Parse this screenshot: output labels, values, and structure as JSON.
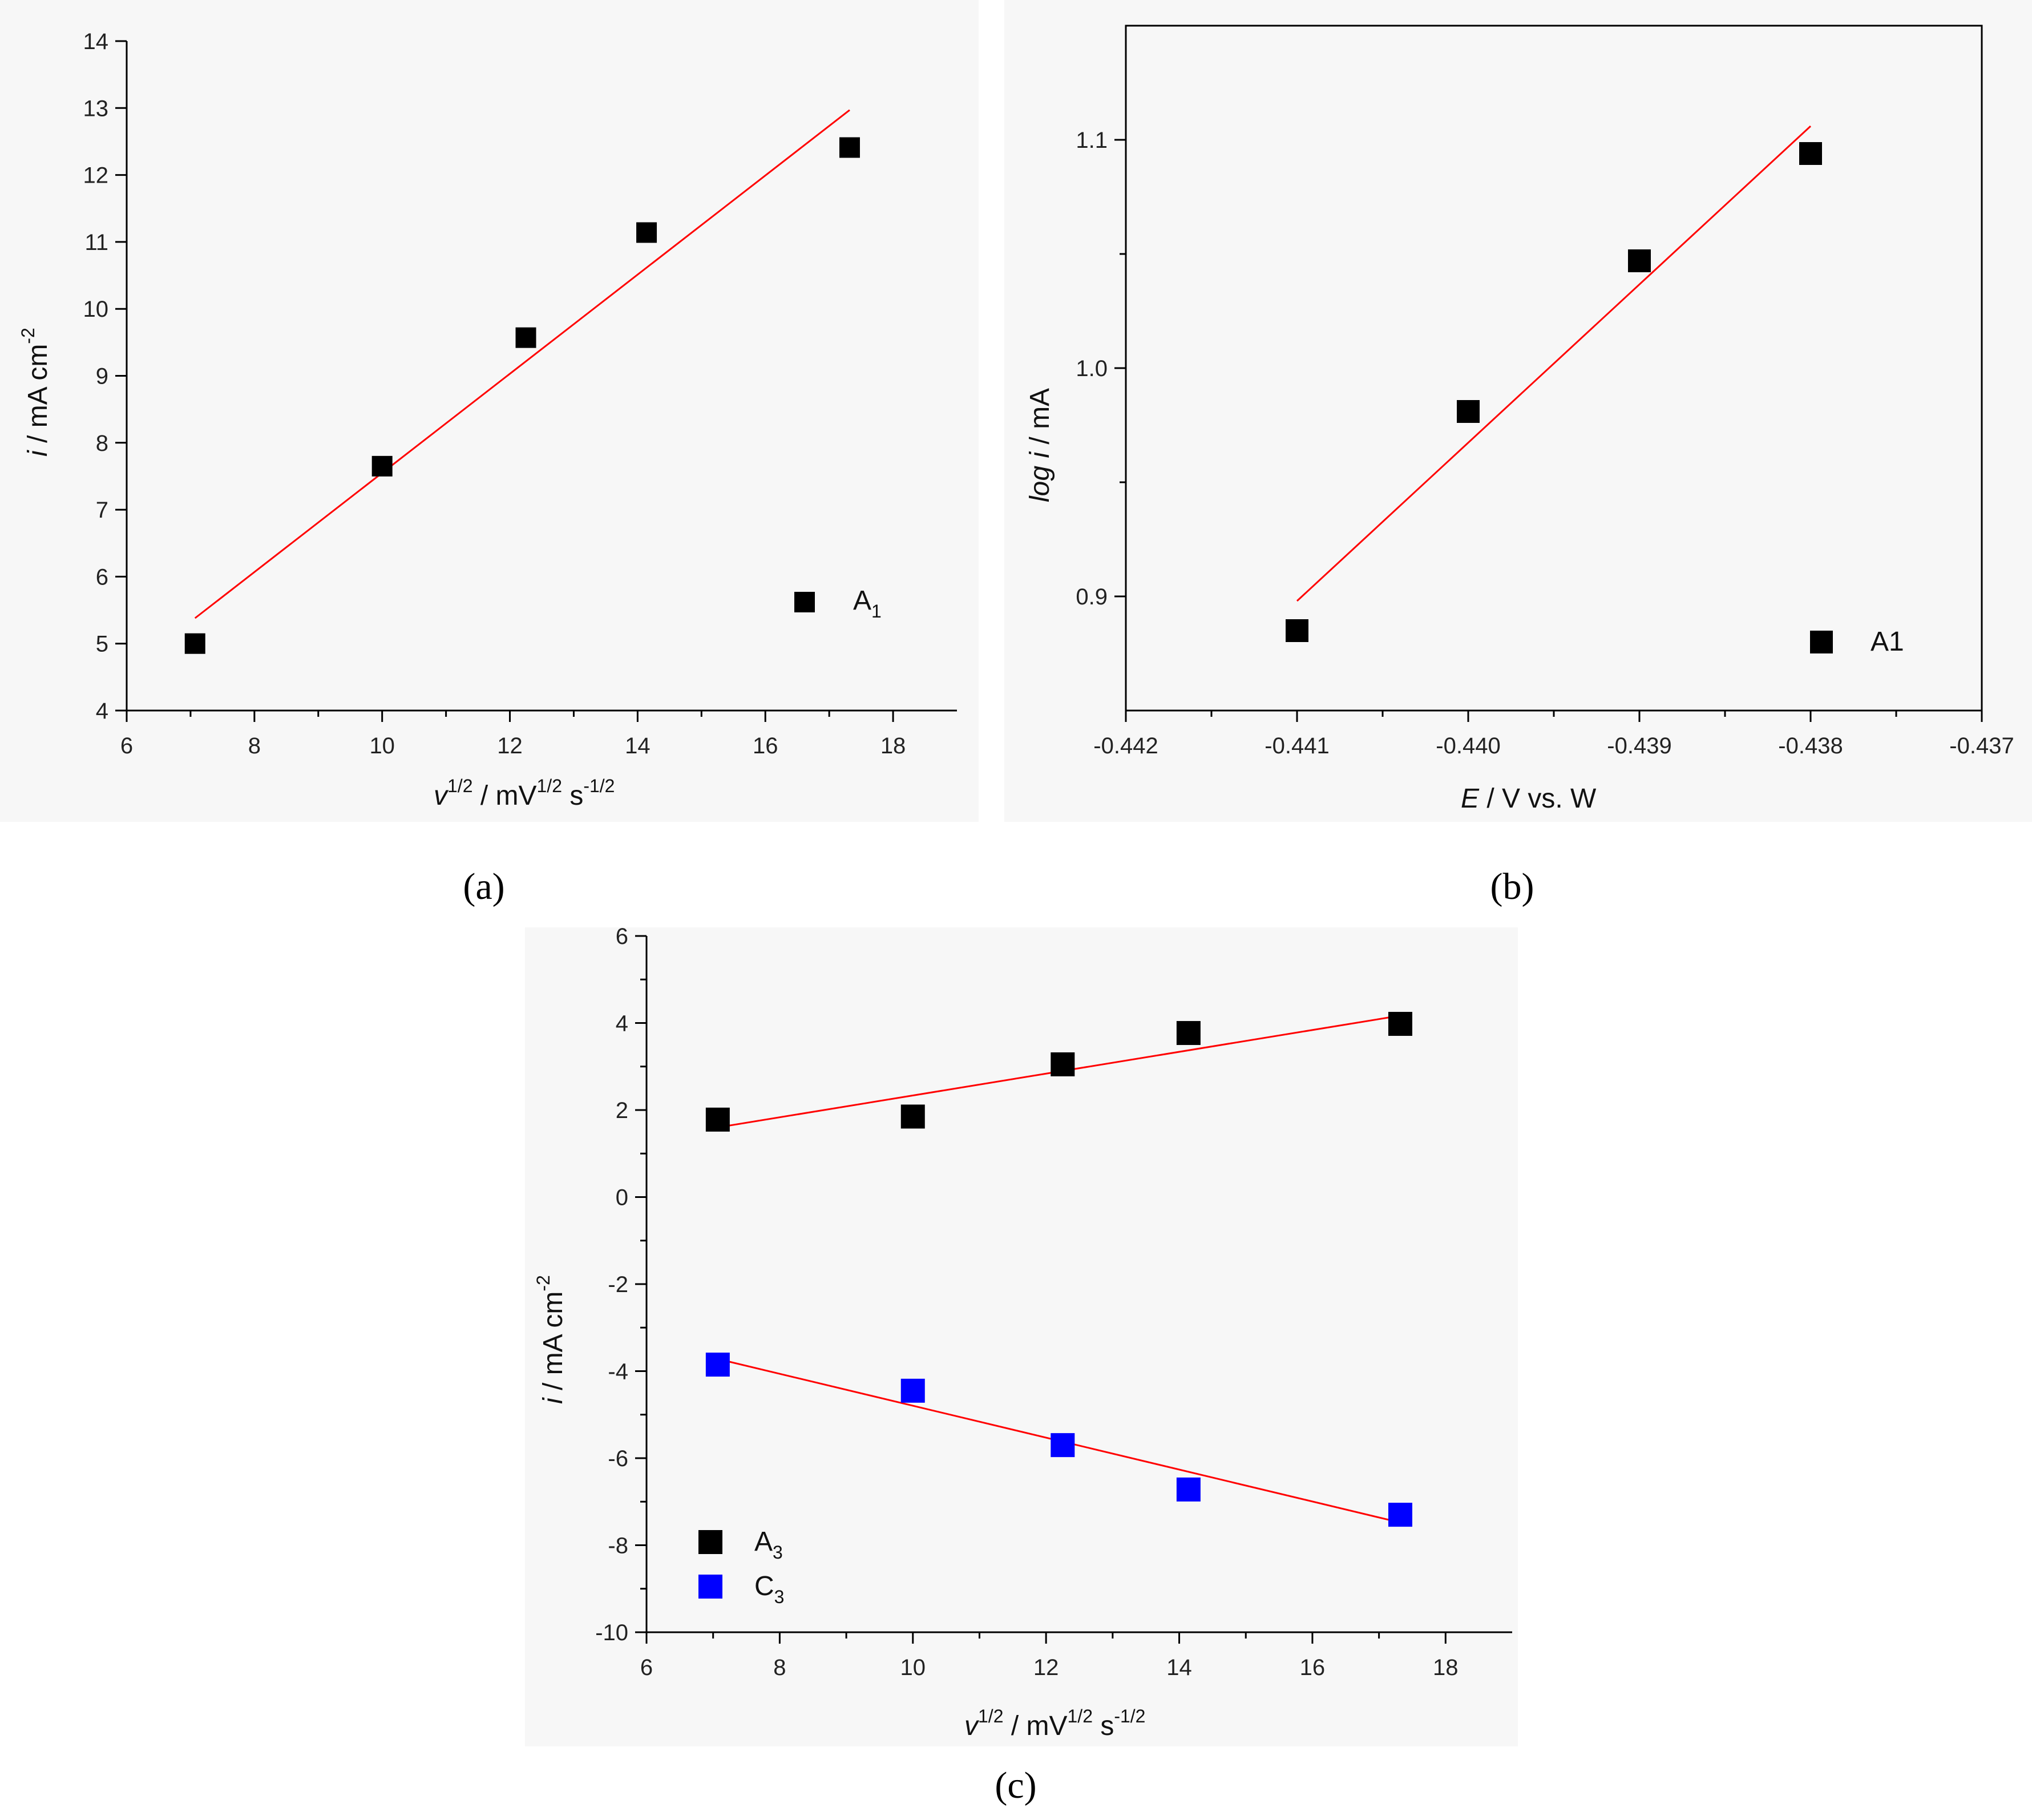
{
  "captions": {
    "a": "(a)",
    "b": "(b)",
    "c": "(c)"
  },
  "chart_data": [
    {
      "id": "a",
      "type": "scatter",
      "xlabel": "v^{1/2} / mV^{1/2} s^{-1/2}",
      "ylabel": "i / mA cm^{-2}",
      "xlim": [
        6,
        19
      ],
      "ylim": [
        4,
        14
      ],
      "xticks": [
        "6",
        "8",
        "10",
        "12",
        "14",
        "16",
        "18"
      ],
      "yticks": [
        "4",
        "5",
        "6",
        "7",
        "8",
        "9",
        "10",
        "11",
        "12",
        "13",
        "14"
      ],
      "legend_position": "bottom-right",
      "series": [
        {
          "name": "A",
          "name_sub": "1",
          "color": "#000000",
          "x": [
            7.07,
            10.0,
            12.25,
            14.14,
            17.32
          ],
          "y": [
            5.0,
            7.65,
            9.57,
            11.14,
            12.41
          ],
          "fit": {
            "x": [
              7.07,
              17.32
            ],
            "y": [
              5.38,
              12.97
            ],
            "color": "#ff0000"
          }
        }
      ]
    },
    {
      "id": "b",
      "type": "scatter",
      "xlabel": "E / V vs. W",
      "ylabel": "log i / mA",
      "xlim": [
        -0.442,
        -0.437
      ],
      "ylim": [
        0.85,
        1.15
      ],
      "xticks": [
        "-0.442",
        "-0.441",
        "-0.440",
        "-0.439",
        "-0.438",
        "-0.437"
      ],
      "yticks": [
        "0.9",
        "1.0",
        "1.1"
      ],
      "legend_position": "bottom-right",
      "series": [
        {
          "name": "A1",
          "color": "#000000",
          "x": [
            -0.441,
            -0.44,
            -0.439,
            -0.438
          ],
          "y": [
            0.885,
            0.981,
            1.047,
            1.094
          ],
          "fit": {
            "x": [
              -0.441,
              -0.438
            ],
            "y": [
              0.898,
              1.106
            ],
            "color": "#ff0000"
          }
        }
      ]
    },
    {
      "id": "c",
      "type": "scatter",
      "xlabel": "v^{1/2} / mV^{1/2} s^{-1/2}",
      "ylabel": "i / mA cm^{-2}",
      "xlim": [
        6,
        19
      ],
      "ylim": [
        -10,
        6
      ],
      "xticks": [
        "6",
        "8",
        "10",
        "12",
        "14",
        "16",
        "18"
      ],
      "yticks": [
        "-10",
        "-8",
        "-6",
        "-4",
        "-2",
        "0",
        "2",
        "4",
        "6"
      ],
      "legend_position": "bottom-left",
      "series": [
        {
          "name": "A",
          "name_sub": "3",
          "color": "#000000",
          "x": [
            7.07,
            10.0,
            12.25,
            14.14,
            17.32
          ],
          "y": [
            1.78,
            1.85,
            3.05,
            3.77,
            3.98
          ],
          "fit": {
            "x": [
              7.07,
              17.32
            ],
            "y": [
              1.6,
              4.17
            ],
            "color": "#ff0000"
          }
        },
        {
          "name": "C",
          "name_sub": "3",
          "color": "#0000ff",
          "x": [
            7.07,
            10.0,
            12.25,
            14.14,
            17.32
          ],
          "y": [
            -3.85,
            -4.45,
            -5.7,
            -6.72,
            -7.3
          ],
          "fit": {
            "x": [
              7.07,
              17.32
            ],
            "y": [
              -3.72,
              -7.48
            ],
            "color": "#ff0000"
          }
        }
      ]
    }
  ]
}
